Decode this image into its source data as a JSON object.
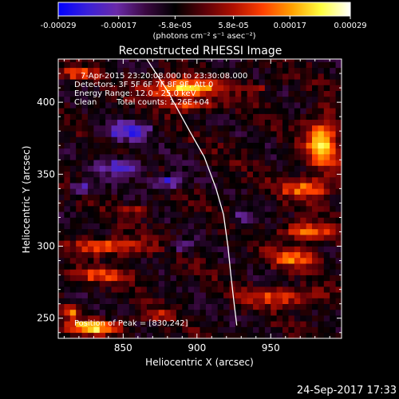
{
  "chart_data": {
    "type": "heatmap",
    "title": "Reconstructed RHESSI Image",
    "xlabel": "Heliocentric X (arcsec)",
    "ylabel": "Heliocentric Y (arcsec)",
    "xlim": [
      806,
      998
    ],
    "ylim": [
      236,
      430
    ],
    "x_ticks": [
      850,
      900,
      950
    ],
    "y_ticks": [
      250,
      300,
      350,
      400
    ],
    "colorbar": {
      "colormap": [
        "#0000ff",
        "#3a20d8",
        "#6a2aa8",
        "#3a0840",
        "#000000",
        "#5a0008",
        "#b01000",
        "#ff4000",
        "#ffa000",
        "#ffff40",
        "#ffffff"
      ],
      "range": [
        -0.00029,
        0.00029
      ],
      "ticks": [
        "-0.00029",
        "-0.00017",
        "-5.8e-05",
        "5.8e-05",
        "0.00017",
        "0.00029"
      ],
      "units_label": "(photons cm⁻² s⁻¹ asec⁻²)"
    },
    "annotations": {
      "time_range": "7-Apr-2015 23:20:08.000 to 23:30:08.000",
      "detectors": "Detectors: 3F 5F 6F 7F 8F 9F, Att 0",
      "energy": "Energy Range: 12.0 - 25.0 keV",
      "method": "Clean",
      "counts": "Total counts: 1.26E+04",
      "peak": "Position of Peak = [830,242]"
    },
    "peak_position": [
      830,
      242
    ],
    "limb_curve": [
      [
        866,
        430
      ],
      [
        880,
        408
      ],
      [
        895,
        380
      ],
      [
        905,
        362
      ],
      [
        913,
        340
      ],
      [
        918,
        322
      ],
      [
        921,
        300
      ],
      [
        923,
        280
      ],
      [
        925,
        262
      ],
      [
        927,
        245
      ]
    ],
    "intensity_features": [
      {
        "x": 890,
        "y": 410,
        "w": 55,
        "h": 14,
        "v": 0.95
      },
      {
        "x": 895,
        "y": 398,
        "w": 38,
        "h": 8,
        "v": 0.65
      },
      {
        "x": 820,
        "y": 420,
        "w": 28,
        "h": 8,
        "v": 0.6
      },
      {
        "x": 985,
        "y": 372,
        "w": 24,
        "h": 40,
        "v": 0.85
      },
      {
        "x": 975,
        "y": 340,
        "w": 38,
        "h": 14,
        "v": 0.7
      },
      {
        "x": 975,
        "y": 310,
        "w": 38,
        "h": 14,
        "v": 0.7
      },
      {
        "x": 965,
        "y": 292,
        "w": 40,
        "h": 14,
        "v": 0.6
      },
      {
        "x": 955,
        "y": 265,
        "w": 55,
        "h": 14,
        "v": 0.55
      },
      {
        "x": 840,
        "y": 300,
        "w": 50,
        "h": 12,
        "v": 0.75
      },
      {
        "x": 835,
        "y": 280,
        "w": 48,
        "h": 10,
        "v": 0.55
      },
      {
        "x": 830,
        "y": 244,
        "w": 40,
        "h": 10,
        "v": 1.0
      },
      {
        "x": 870,
        "y": 252,
        "w": 25,
        "h": 8,
        "v": 0.45
      },
      {
        "x": 815,
        "y": 255,
        "w": 14,
        "h": 10,
        "v": 0.6
      },
      {
        "x": 855,
        "y": 325,
        "w": 24,
        "h": 8,
        "v": 0.4
      },
      {
        "x": 940,
        "y": 410,
        "w": 16,
        "h": 8,
        "v": 0.4
      },
      {
        "x": 880,
        "y": 345,
        "w": 24,
        "h": 10,
        "v": -0.7
      },
      {
        "x": 852,
        "y": 380,
        "w": 36,
        "h": 14,
        "v": -0.6
      },
      {
        "x": 850,
        "y": 355,
        "w": 30,
        "h": 14,
        "v": -0.7
      },
      {
        "x": 822,
        "y": 340,
        "w": 18,
        "h": 10,
        "v": -0.55
      },
      {
        "x": 890,
        "y": 300,
        "w": 18,
        "h": 10,
        "v": -0.45
      },
      {
        "x": 930,
        "y": 320,
        "w": 16,
        "h": 10,
        "v": -0.35
      }
    ]
  },
  "footer": {
    "timestamp": "24-Sep-2017 17:33"
  }
}
